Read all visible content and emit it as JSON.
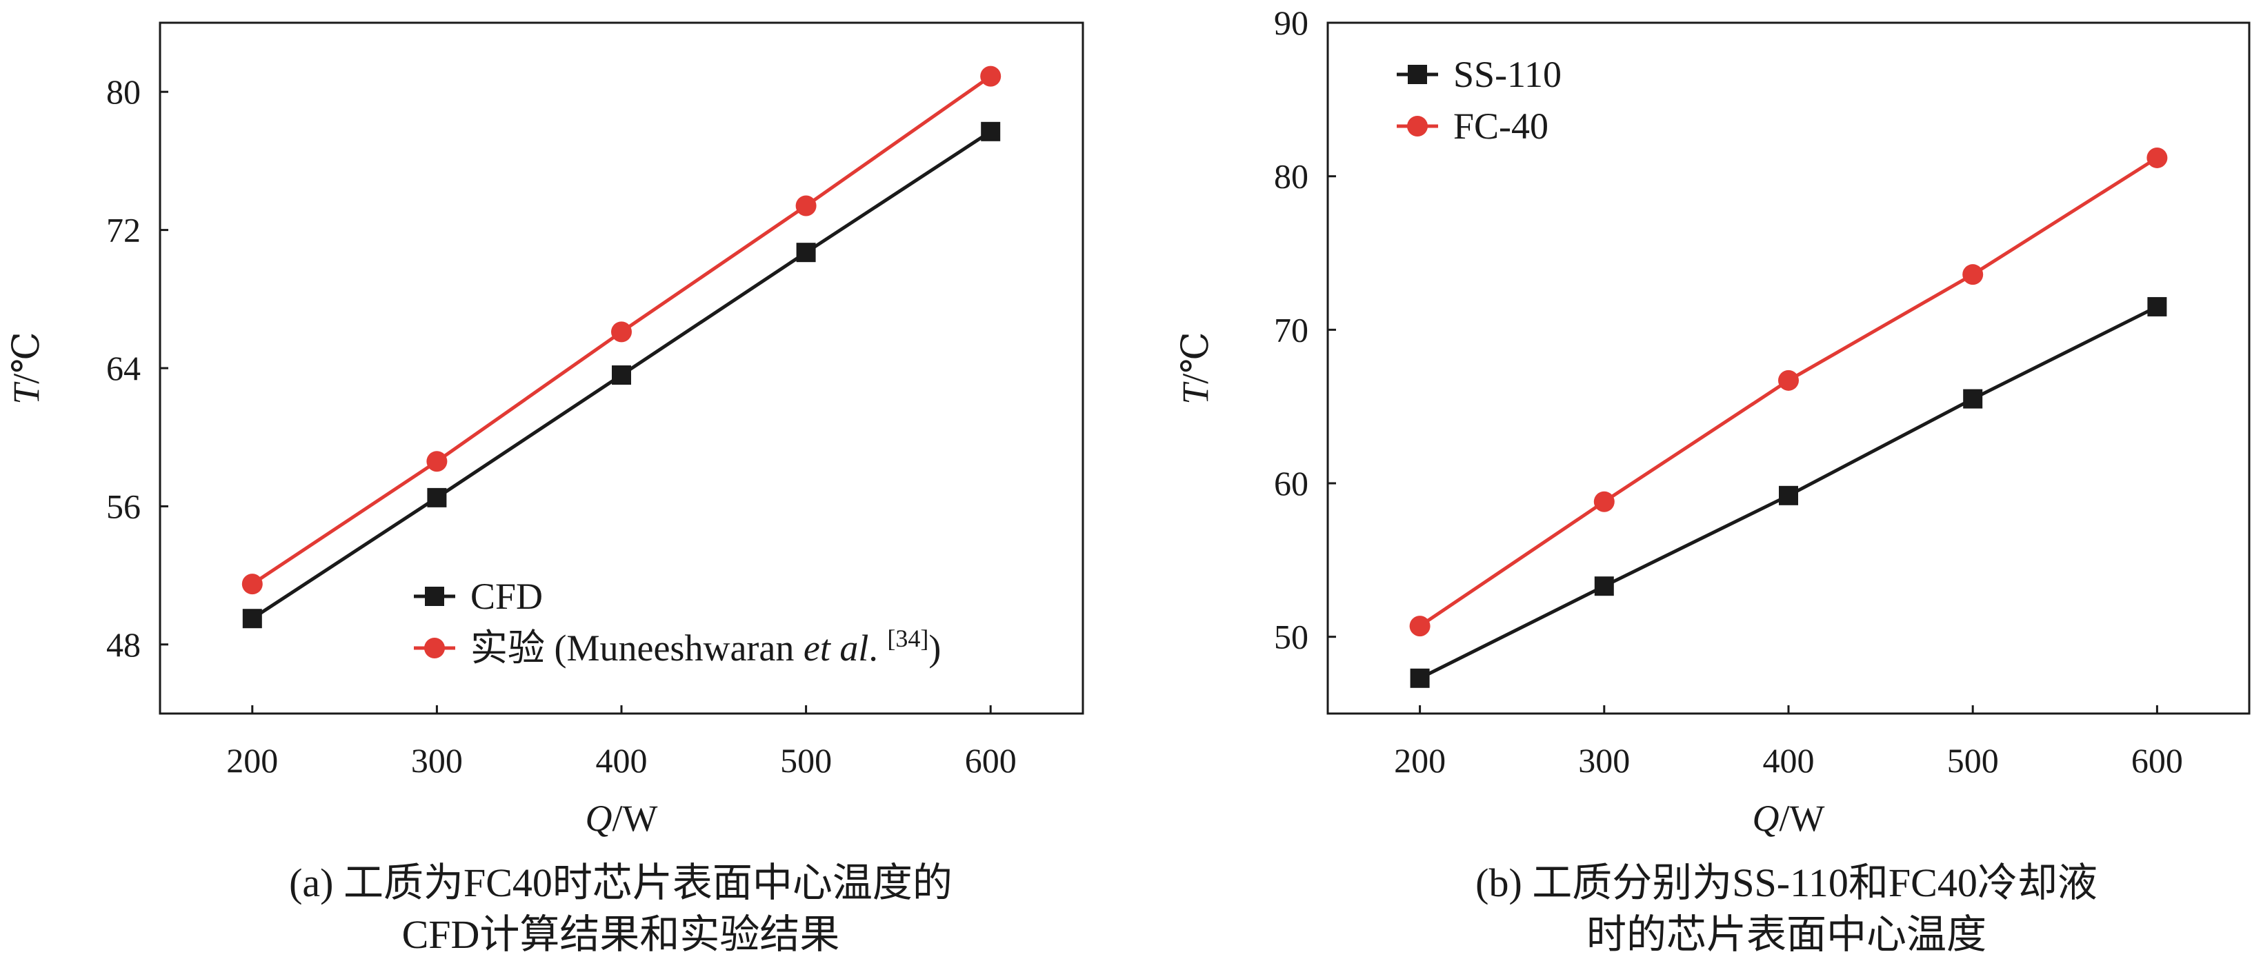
{
  "colors": {
    "black": "#1a1a1a",
    "red": "#e23a34"
  },
  "chart_data": [
    {
      "type": "line",
      "panel": "a",
      "xlabel_var": "Q",
      "xlabel_unit": "/W",
      "ylabel_var": "T",
      "ylabel_unit": "/℃",
      "xlim": [
        150,
        650
      ],
      "ylim": [
        44,
        84
      ],
      "xticks": [
        200,
        300,
        400,
        500,
        600
      ],
      "yticks": [
        48,
        56,
        64,
        72,
        80
      ],
      "x": [
        200,
        300,
        400,
        500,
        600
      ],
      "series": [
        {
          "name": "CFD",
          "marker": "square",
          "color": "#1a1a1a",
          "values": [
            49.5,
            56.5,
            63.6,
            70.7,
            77.7
          ]
        },
        {
          "name": "实验",
          "marker": "circle",
          "color": "#e23a34",
          "values": [
            51.5,
            58.6,
            66.1,
            73.4,
            80.9
          ]
        }
      ],
      "legend": {
        "position": "bottom-center",
        "entries": [
          "CFD",
          "实验"
        ],
        "citation_prefix": "(Muneeshwaran ",
        "citation_italic": "et al",
        "citation_dot": ". ",
        "citation_ref": "[34]",
        "citation_close": ")"
      },
      "caption_line1": "(a) 工质为FC40时芯片表面中心温度的",
      "caption_line2": "CFD计算结果和实验结果"
    },
    {
      "type": "line",
      "panel": "b",
      "xlabel_var": "Q",
      "xlabel_unit": "/W",
      "ylabel_var": "T",
      "ylabel_unit": "/℃",
      "xlim": [
        150,
        650
      ],
      "ylim": [
        45,
        90
      ],
      "xticks": [
        200,
        300,
        400,
        500,
        600
      ],
      "yticks": [
        50,
        60,
        70,
        80,
        90
      ],
      "x": [
        200,
        300,
        400,
        500,
        600
      ],
      "series": [
        {
          "name": "SS-110",
          "marker": "square",
          "color": "#1a1a1a",
          "values": [
            47.3,
            53.3,
            59.2,
            65.5,
            71.5
          ]
        },
        {
          "name": "FC-40",
          "marker": "circle",
          "color": "#e23a34",
          "values": [
            50.7,
            58.8,
            66.7,
            73.6,
            81.2
          ]
        }
      ],
      "legend": {
        "position": "top-left",
        "entries": [
          "SS-110",
          "FC-40"
        ]
      },
      "caption_line1": "(b) 工质分别为SS-110和FC40冷却液",
      "caption_line2": "时的芯片表面中心温度"
    }
  ]
}
